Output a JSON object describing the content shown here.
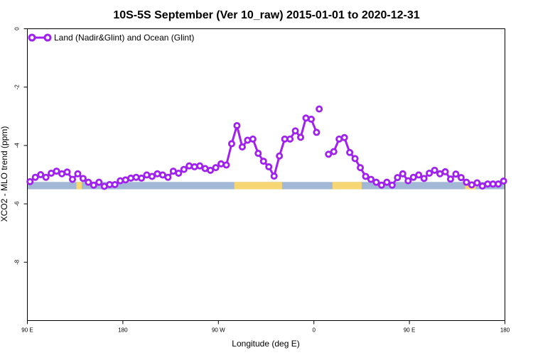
{
  "chart_data": {
    "type": "line",
    "title": "10S-5S September (Ver 10_raw)   2015-01-01 to 2020-12-31",
    "xlabel": "Longitude (deg E)",
    "ylabel": "XCO2 - MLO trend (ppm)",
    "xlim": [
      90,
      450
    ],
    "ylim": [
      -10,
      0
    ],
    "x_ticks": [
      {
        "value": 90,
        "label": "90 E"
      },
      {
        "value": 162,
        "label": "180"
      },
      {
        "value": 234,
        "label": "90 W"
      },
      {
        "value": 306,
        "label": "0"
      },
      {
        "value": 378,
        "label": "90 E"
      },
      {
        "value": 450,
        "label": "180"
      }
    ],
    "y_ticks": [
      {
        "value": 0,
        "label": "0"
      },
      {
        "value": -2,
        "label": "-2"
      },
      {
        "value": -4,
        "label": "-4"
      },
      {
        "value": -6,
        "label": "-6"
      },
      {
        "value": -8,
        "label": "-8"
      }
    ],
    "grid": false,
    "legend_position": "top-left",
    "series": [
      {
        "name": "Land (Nadir&Glint) and Ocean (Glint)",
        "color": "#a020f0",
        "segments": [
          {
            "x": [
              92,
              96,
              100,
              104,
              108,
              112,
              116,
              120,
              124,
              128,
              132,
              136,
              140,
              144,
              148,
              152,
              156,
              160,
              164,
              168,
              172,
              176,
              180,
              184,
              188,
              192,
              196,
              200,
              204,
              208,
              212,
              216,
              220,
              224,
              228,
              232,
              236,
              240,
              244,
              248,
              252,
              256,
              260,
              264,
              268,
              272,
              276,
              280,
              284,
              288,
              292,
              296,
              300,
              304,
              308
            ],
            "y": [
              -5.24,
              -5.09,
              -5.0,
              -5.09,
              -4.95,
              -4.88,
              -4.97,
              -4.91,
              -5.16,
              -4.97,
              -5.13,
              -5.26,
              -5.36,
              -5.26,
              -5.4,
              -5.34,
              -5.34,
              -5.21,
              -5.18,
              -5.12,
              -5.09,
              -5.12,
              -5.01,
              -5.06,
              -4.97,
              -5.01,
              -5.09,
              -4.88,
              -4.95,
              -4.82,
              -4.7,
              -4.73,
              -4.7,
              -4.79,
              -4.85,
              -4.76,
              -4.63,
              -4.67,
              -3.94,
              -3.32,
              -4.05,
              -3.82,
              -3.78,
              -4.27,
              -4.54,
              -4.73,
              -5.05,
              -4.36,
              -3.78,
              -3.78,
              -3.5,
              -3.72,
              -3.06,
              -3.1,
              -3.55
            ]
          },
          {
            "x": [
              310
            ],
            "y": [
              -2.75
            ]
          },
          {
            "x": [
              317,
              321,
              325,
              329,
              333,
              337,
              341,
              345,
              349,
              353,
              357,
              361,
              365,
              369,
              373,
              377,
              381,
              385,
              389,
              393,
              397,
              401,
              405,
              409,
              413,
              417,
              421,
              425,
              429,
              433,
              437,
              441,
              445,
              449
            ],
            "y": [
              -4.3,
              -4.21,
              -3.78,
              -3.73,
              -4.24,
              -4.45,
              -4.76,
              -5.06,
              -5.16,
              -5.26,
              -5.36,
              -5.26,
              -5.36,
              -5.1,
              -4.97,
              -5.21,
              -5.09,
              -5.01,
              -5.13,
              -4.95,
              -4.85,
              -4.97,
              -4.9,
              -5.15,
              -4.98,
              -5.1,
              -5.26,
              -5.35,
              -5.28,
              -5.39,
              -5.32,
              -5.32,
              -5.32,
              -5.22
            ]
          }
        ]
      }
    ],
    "background_band": {
      "y_range": [
        -5.5,
        -5.25
      ],
      "ocean_color": "#a3b8d6",
      "land_color": "#f7d774",
      "land_spans": [
        [
          127,
          131
        ],
        [
          246,
          282
        ],
        [
          320,
          342
        ],
        [
          420,
          428
        ]
      ]
    }
  }
}
